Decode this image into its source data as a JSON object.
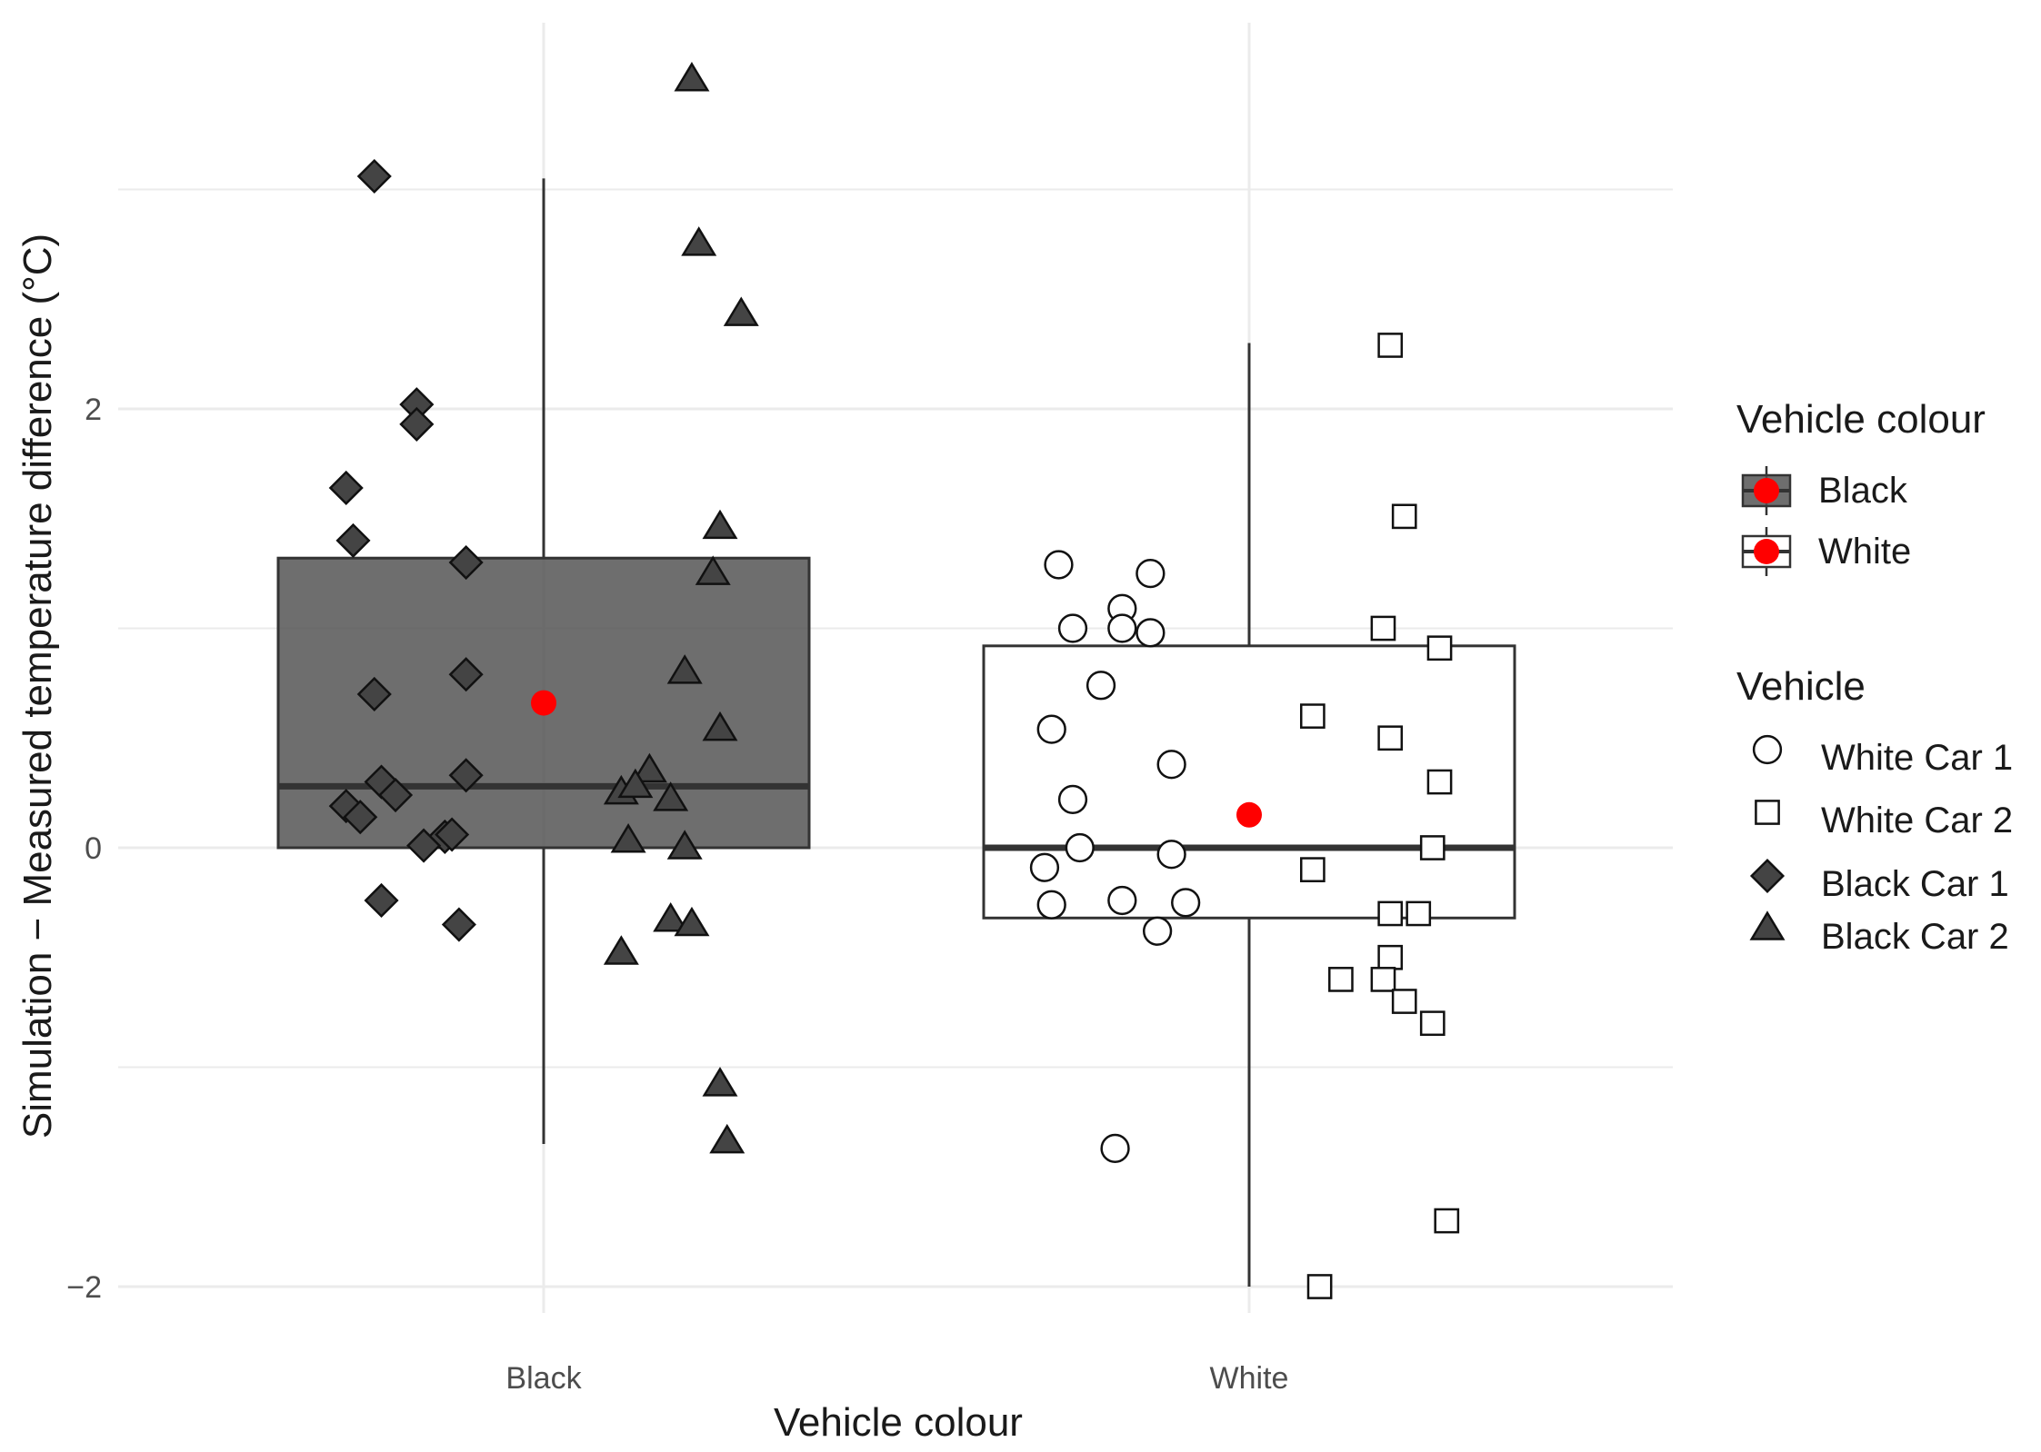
{
  "chart_data": {
    "type": "box",
    "title": "",
    "xlabel": "Vehicle colour",
    "ylabel": "Simulation − Measured temperature difference (°C)",
    "ylim": [
      -2.05,
      3.8
    ],
    "yticks": [
      -2,
      0,
      2
    ],
    "categories": [
      "Black",
      "White"
    ],
    "grid": true,
    "legend_placement": "right",
    "boxes": [
      {
        "category": "Black",
        "whisker_low": -1.35,
        "q1": 0.0,
        "median": 0.28,
        "q3": 1.32,
        "whisker_high": 3.05,
        "mean": 0.66,
        "fill": "#555555",
        "fill_opacity": 0.85
      },
      {
        "category": "White",
        "whisker_low": -2.0,
        "q1": -0.32,
        "median": 0.0,
        "q3": 0.92,
        "whisker_high": 2.3,
        "mean": 0.15,
        "fill": "#ffffff",
        "fill_opacity": 1.0
      }
    ],
    "mean_color": "#ff0000",
    "series": [
      {
        "name": "White Car 1",
        "category": "White",
        "shape": "circle",
        "fill": "#ffffff",
        "points": [
          [
            -0.27,
            1.29
          ],
          [
            -0.25,
            1.0
          ],
          [
            -0.21,
            0.74
          ],
          [
            -0.28,
            0.54
          ],
          [
            -0.25,
            0.22
          ],
          [
            -0.24,
            0.0
          ],
          [
            -0.29,
            -0.09
          ],
          [
            -0.28,
            -0.26
          ],
          [
            -0.18,
            1.09
          ],
          [
            -0.18,
            1.0
          ],
          [
            -0.14,
            0.98
          ],
          [
            -0.14,
            1.25
          ],
          [
            -0.11,
            0.38
          ],
          [
            -0.11,
            -0.03
          ],
          [
            -0.18,
            -0.24
          ],
          [
            -0.13,
            -0.38
          ],
          [
            -0.09,
            -0.25
          ],
          [
            -0.19,
            -1.37
          ]
        ]
      },
      {
        "name": "White Car 2",
        "category": "White",
        "shape": "square",
        "fill": "#ffffff",
        "points": [
          [
            0.2,
            2.29
          ],
          [
            0.22,
            1.51
          ],
          [
            0.19,
            1.0
          ],
          [
            0.27,
            0.91
          ],
          [
            0.09,
            0.6
          ],
          [
            0.2,
            0.5
          ],
          [
            0.27,
            0.3
          ],
          [
            0.26,
            0.0
          ],
          [
            0.09,
            -0.1
          ],
          [
            0.2,
            -0.3
          ],
          [
            0.24,
            -0.3
          ],
          [
            0.2,
            -0.5
          ],
          [
            0.13,
            -0.6
          ],
          [
            0.19,
            -0.6
          ],
          [
            0.22,
            -0.7
          ],
          [
            0.26,
            -0.8
          ],
          [
            0.28,
            -1.7
          ],
          [
            0.1,
            -2.0
          ]
        ]
      },
      {
        "name": "Black Car 1",
        "category": "Black",
        "shape": "diamond",
        "fill": "#444444",
        "points": [
          [
            -0.24,
            3.06
          ],
          [
            -0.18,
            2.02
          ],
          [
            -0.18,
            1.93
          ],
          [
            -0.28,
            1.64
          ],
          [
            -0.27,
            1.4
          ],
          [
            -0.11,
            1.3
          ],
          [
            -0.11,
            0.79
          ],
          [
            -0.24,
            0.7
          ],
          [
            -0.23,
            0.3
          ],
          [
            -0.21,
            0.24
          ],
          [
            -0.11,
            0.33
          ],
          [
            -0.28,
            0.19
          ],
          [
            -0.26,
            0.14
          ],
          [
            -0.14,
            0.05
          ],
          [
            -0.13,
            0.06
          ],
          [
            -0.17,
            0.01
          ],
          [
            -0.23,
            -0.24
          ],
          [
            -0.12,
            -0.35
          ]
        ]
      },
      {
        "name": "Black Car 2",
        "category": "Black",
        "shape": "triangle",
        "fill": "#444444",
        "points": [
          [
            0.21,
            3.5
          ],
          [
            0.22,
            2.75
          ],
          [
            0.28,
            2.43
          ],
          [
            0.25,
            1.46
          ],
          [
            0.24,
            1.25
          ],
          [
            0.2,
            0.8
          ],
          [
            0.25,
            0.54
          ],
          [
            0.15,
            0.35
          ],
          [
            0.11,
            0.25
          ],
          [
            0.13,
            0.28
          ],
          [
            0.18,
            0.22
          ],
          [
            0.12,
            0.03
          ],
          [
            0.2,
            0.0
          ],
          [
            0.18,
            -0.33
          ],
          [
            0.21,
            -0.35
          ],
          [
            0.11,
            -0.48
          ],
          [
            0.25,
            -1.08
          ],
          [
            0.26,
            -1.34
          ]
        ]
      }
    ]
  },
  "legend": {
    "colour_title": "Vehicle colour",
    "colour_items": [
      {
        "label": "Black",
        "fill": "#555555"
      },
      {
        "label": "White",
        "fill": "#ffffff"
      }
    ],
    "vehicle_title": "Vehicle",
    "vehicle_items": [
      {
        "label": "White Car 1",
        "shape": "circle",
        "fill": "#ffffff"
      },
      {
        "label": "White Car 2",
        "shape": "square",
        "fill": "#ffffff"
      },
      {
        "label": "Black Car 1",
        "shape": "diamond",
        "fill": "#444444"
      },
      {
        "label": "Black Car 2",
        "shape": "triangle",
        "fill": "#444444"
      }
    ]
  }
}
